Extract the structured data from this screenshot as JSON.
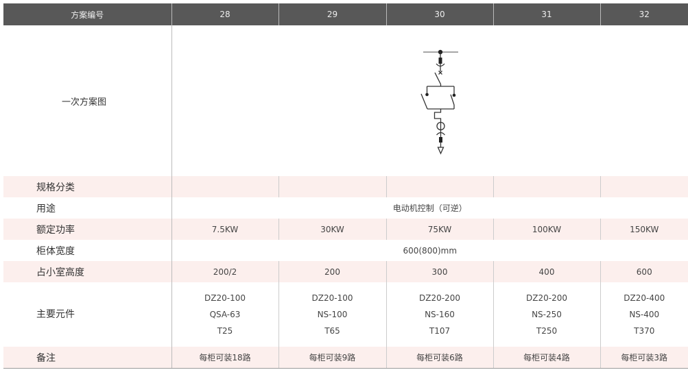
{
  "header": {
    "label": "方案编号",
    "columns": [
      "28",
      "29",
      "30",
      "31",
      "32"
    ]
  },
  "diagram_row": {
    "label": "一次方案图",
    "icon": "motor-control-reversible-circuit-diagram"
  },
  "rows": {
    "spec": {
      "label": "规格分类",
      "values": [
        "",
        "",
        "",
        "",
        ""
      ]
    },
    "usage": {
      "label": "用途",
      "value": "电动机控制（可逆）"
    },
    "power": {
      "label": "额定功率",
      "values": [
        "7.5KW",
        "30KW",
        "75KW",
        "100KW",
        "150KW"
      ]
    },
    "width": {
      "label": "柜体宽度",
      "value": "600(800)mm"
    },
    "height": {
      "label": "占小室高度",
      "values": [
        "200/2",
        "200",
        "300",
        "400",
        "600"
      ]
    },
    "components": {
      "label": "主要元件",
      "values": [
        [
          "DZ20-100",
          "QSA-63",
          "T25"
        ],
        [
          "DZ20-100",
          "NS-100",
          "T65"
        ],
        [
          "DZ20-200",
          "NS-160",
          "T107"
        ],
        [
          "DZ20-200",
          "NS-250",
          "T250"
        ],
        [
          "DZ20-400",
          "NS-400",
          "T370"
        ]
      ]
    },
    "remark": {
      "label": "备注",
      "values": [
        "每柜可装18路",
        "每柜可装9路",
        "每柜可装6路",
        "每柜可装4路",
        "每柜可装3路"
      ]
    }
  },
  "colors": {
    "header_bg": "#585858",
    "stripe_bg": "#fcefed"
  }
}
